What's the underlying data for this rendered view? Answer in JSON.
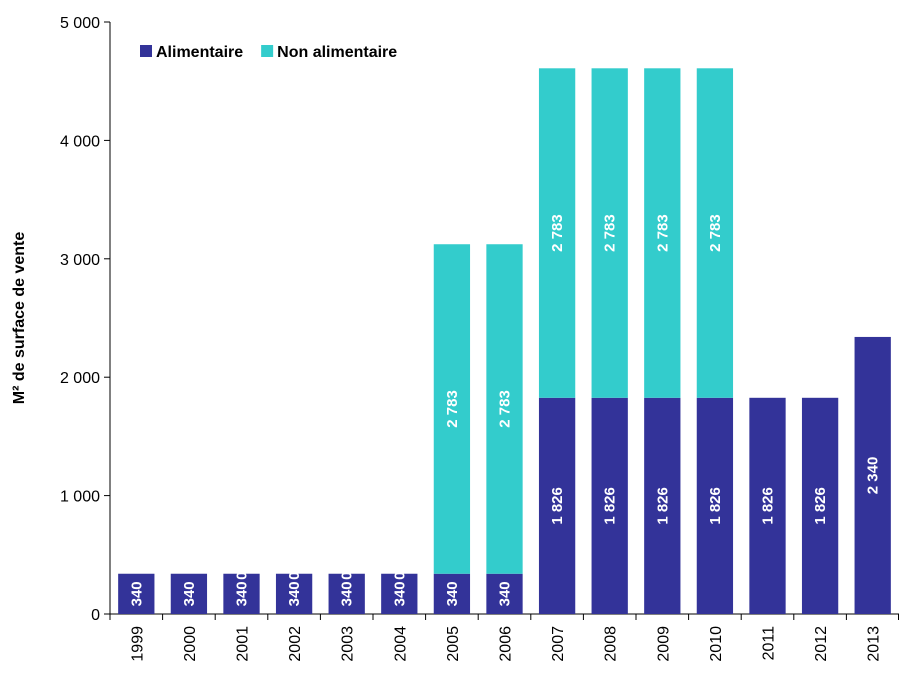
{
  "chart_data": {
    "type": "stacked_bar",
    "y_label": "M² de surface de vente",
    "categories": [
      "1999",
      "2000",
      "2001",
      "2002",
      "2003",
      "2004",
      "2005",
      "2006",
      "2007",
      "2008",
      "2009",
      "2010",
      "2011",
      "2012",
      "2013"
    ],
    "series": [
      {
        "name": "Alimentaire",
        "color": "#333399",
        "values": [
          340,
          340,
          340,
          340,
          340,
          340,
          340,
          340,
          1826,
          1826,
          1826,
          1826,
          1826,
          1826,
          2340
        ],
        "value_labels": [
          "340",
          "340",
          "340",
          "340",
          "340",
          "340",
          "340",
          "340",
          "1 826",
          "1 826",
          "1 826",
          "1 826",
          "1 826",
          "1 826",
          "2 340"
        ]
      },
      {
        "name": "Non alimentaire",
        "color": "#33CCCC",
        "values": [
          null,
          null,
          0,
          0,
          0,
          0,
          2783,
          2783,
          2783,
          2783,
          2783,
          2783,
          null,
          null,
          null
        ],
        "value_labels": [
          null,
          null,
          "0",
          "0",
          "0",
          "0",
          "2 783",
          "2 783",
          "2 783",
          "2 783",
          "2 783",
          "2 783",
          null,
          null,
          null
        ]
      }
    ],
    "ylim": [
      0,
      5000
    ],
    "yticks": [
      0,
      {
        "value": 1000,
        "label": "1 000"
      },
      {
        "value": 2000,
        "label": "2 000"
      },
      {
        "value": 3000,
        "label": "3 000"
      },
      {
        "value": 4000,
        "label": "4 000"
      },
      {
        "value": 5000,
        "label": "5 000"
      }
    ],
    "legend": "top-left"
  }
}
